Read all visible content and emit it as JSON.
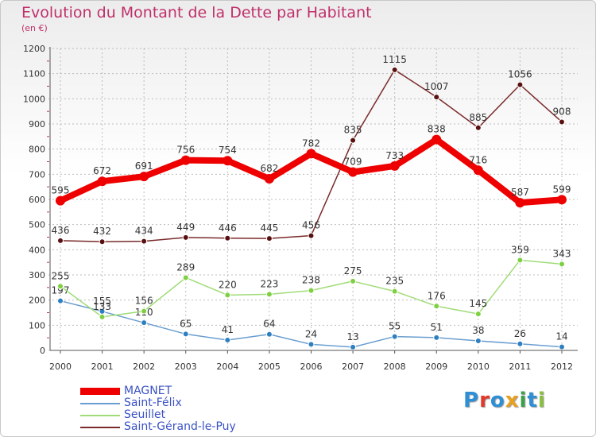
{
  "chart_data": {
    "type": "line",
    "title": "Evolution du Montant de la Dette par Habitant",
    "subtitle": "(en €)",
    "xlabel": "",
    "ylabel": "",
    "categories": [
      "2000",
      "2001",
      "2002",
      "2003",
      "2004",
      "2005",
      "2006",
      "2007",
      "2008",
      "2009",
      "2010",
      "2011",
      "2012"
    ],
    "ylim": [
      0,
      1200
    ],
    "yticks": [
      0,
      100,
      200,
      300,
      400,
      500,
      600,
      700,
      800,
      900,
      1000,
      1100,
      1200
    ],
    "grid": true,
    "legend_position": "bottom-left",
    "series": [
      {
        "name": "MAGNET",
        "color": "#ee0000",
        "emphasis": true,
        "values": [
          595,
          672,
          691,
          756,
          754,
          682,
          782,
          709,
          733,
          838,
          716,
          587,
          599
        ]
      },
      {
        "name": "Saint-Félix",
        "color": "#6a9ed0",
        "marker_color": "#2e7fc0",
        "values": [
          197,
          155,
          110,
          65,
          41,
          64,
          24,
          13,
          55,
          51,
          38,
          26,
          14
        ]
      },
      {
        "name": "Seuillet",
        "color": "#a0dc78",
        "marker_color": "#7ed040",
        "values": [
          255,
          133,
          156,
          289,
          220,
          223,
          238,
          275,
          235,
          176,
          145,
          359,
          343
        ]
      },
      {
        "name": "Saint-Gérand-le-Puy",
        "color": "#7a2a2a",
        "marker_color": "#5a1010",
        "values": [
          436,
          432,
          434,
          449,
          446,
          445,
          456,
          835,
          1115,
          1007,
          885,
          1056,
          908
        ]
      }
    ]
  },
  "brand": {
    "letters": [
      "P",
      "r",
      "o",
      "x",
      "i",
      "t",
      "i"
    ],
    "colors": [
      "#2e8fd6",
      "#e03a2a",
      "#2e8fd6",
      "#e8a020",
      "#3aa04a",
      "#2e8fd6",
      "#8ac040"
    ]
  }
}
